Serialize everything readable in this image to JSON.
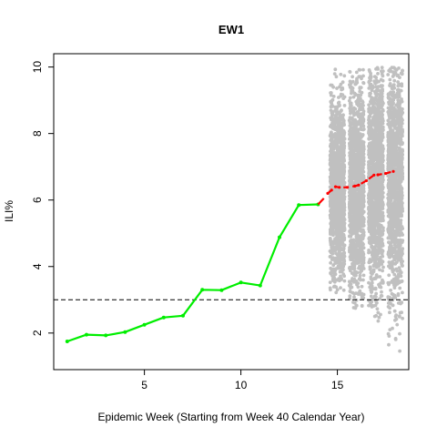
{
  "chart_data": {
    "type": "line",
    "title": "EW1",
    "xlabel": "Epidemic Week (Starting from Week 40 Calendar Year)",
    "ylabel": "ILI%",
    "xlim": [
      0.3,
      18.7
    ],
    "ylim": [
      0.9,
      10.4
    ],
    "x_ticks": [
      5,
      10,
      15
    ],
    "y_ticks": [
      2,
      4,
      6,
      8,
      10
    ],
    "grid": false,
    "reference_line": {
      "y": 3.0,
      "style": "dashed",
      "color": "#000000"
    },
    "observed": {
      "color": "#00ee00",
      "x": [
        1,
        2,
        3,
        4,
        5,
        6,
        7,
        8,
        9,
        10,
        11,
        12,
        13,
        14
      ],
      "y": [
        1.75,
        1.95,
        1.93,
        2.03,
        2.25,
        2.47,
        2.52,
        3.3,
        3.29,
        3.52,
        3.43,
        4.88,
        5.85,
        5.87
      ]
    },
    "connector": {
      "color": "#ff0000",
      "x": [
        14,
        14.3
      ],
      "y": [
        5.87,
        6.05
      ]
    },
    "forecast": {
      "color": "#ff0000",
      "x": [
        14.5,
        14.7,
        14.9,
        15.1,
        15.5,
        15.9,
        16.1,
        16.5,
        16.9,
        17.1,
        17.5,
        17.9
      ],
      "y": [
        6.2,
        6.3,
        6.4,
        6.38,
        6.38,
        6.42,
        6.45,
        6.58,
        6.75,
        6.76,
        6.8,
        6.86
      ]
    },
    "simulation_bands": {
      "color": "#c0c0c0",
      "bands": [
        {
          "center": 15,
          "halfwidth": 0.38,
          "min": 3.2,
          "max": 10.0,
          "mean": 6.3,
          "sd": 1.3
        },
        {
          "center": 16,
          "halfwidth": 0.38,
          "min": 2.7,
          "max": 10.0,
          "mean": 6.4,
          "sd": 1.5
        },
        {
          "center": 17,
          "halfwidth": 0.38,
          "min": 2.3,
          "max": 10.0,
          "mean": 6.6,
          "sd": 1.6
        },
        {
          "center": 18,
          "halfwidth": 0.38,
          "min": 1.2,
          "max": 10.0,
          "mean": 6.6,
          "sd": 1.7
        }
      ]
    }
  }
}
